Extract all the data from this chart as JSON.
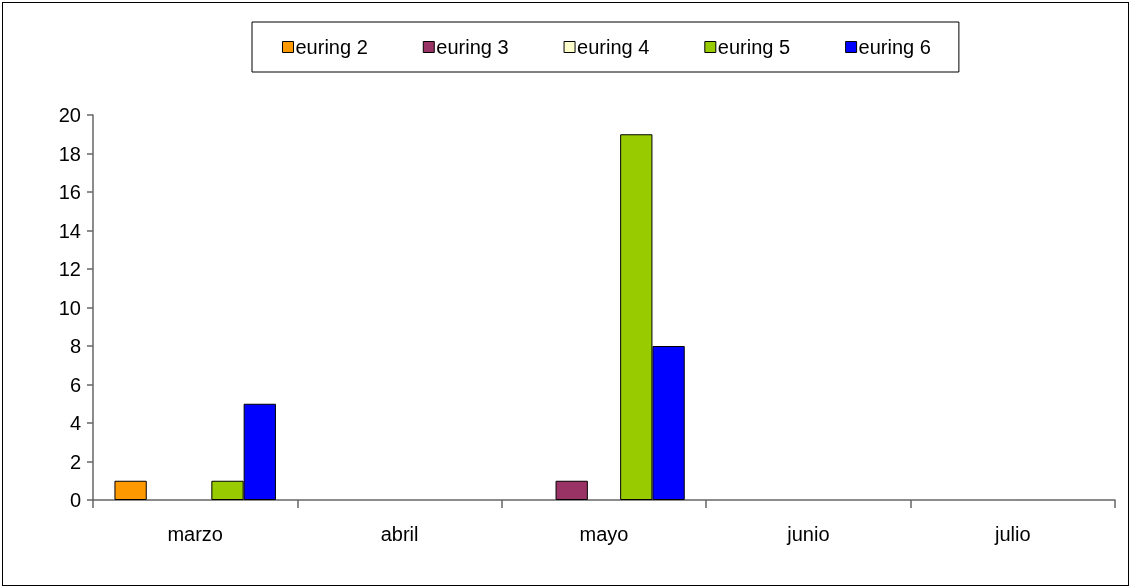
{
  "chart_data": {
    "type": "bar",
    "categories": [
      "marzo",
      "abril",
      "mayo",
      "junio",
      "julio"
    ],
    "series": [
      {
        "name": "euring 2",
        "color": "#ff9900",
        "values": [
          1,
          null,
          null,
          null,
          null
        ]
      },
      {
        "name": "euring 3",
        "color": "#993366",
        "values": [
          null,
          null,
          1,
          null,
          null
        ]
      },
      {
        "name": "euring 4",
        "color": "#ffffcc",
        "values": [
          null,
          null,
          null,
          null,
          null
        ]
      },
      {
        "name": "euring 5",
        "color": "#99cc00",
        "values": [
          1,
          null,
          19,
          null,
          null
        ]
      },
      {
        "name": "euring 6",
        "color": "#0000ff",
        "values": [
          5,
          null,
          8,
          null,
          null
        ]
      }
    ],
    "ylim": [
      0,
      20
    ],
    "yticks": [
      0,
      2,
      4,
      6,
      8,
      10,
      12,
      14,
      16,
      18,
      20
    ],
    "legend": "top"
  }
}
